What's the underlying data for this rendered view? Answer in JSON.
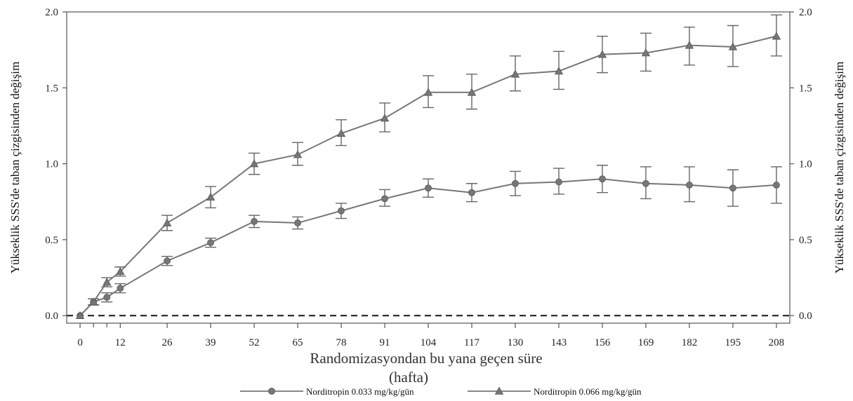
{
  "chart_data": {
    "type": "line",
    "xlabel": "Randomizasyondan bu yana geçen süre",
    "xlabel_unit": "(hafta)",
    "ylabel_left": "Yükseklik SSS'de taban çizgisinden değişim",
    "ylabel_right": "Yükseklik SSS'de taban çizgisinden değişim",
    "x_ticks": [
      0,
      12,
      26,
      39,
      52,
      65,
      78,
      91,
      104,
      117,
      130,
      143,
      156,
      169,
      182,
      195,
      208
    ],
    "y_ticks": [
      "0.0",
      "0.5",
      "1.0",
      "1.5",
      "2.0"
    ],
    "xlim": [
      -4,
      212
    ],
    "ylim": [
      -0.05,
      2.0
    ],
    "reference_line_y": 0.0,
    "legend_position": "bottom",
    "series": [
      {
        "name": "Norditropin 0.033 mg/kg/gün",
        "marker": "circle",
        "color": "#777777",
        "x": [
          0,
          4,
          8,
          12,
          26,
          39,
          52,
          65,
          78,
          91,
          104,
          117,
          130,
          143,
          156,
          169,
          182,
          195,
          208
        ],
        "y": [
          0.0,
          0.09,
          0.12,
          0.18,
          0.36,
          0.48,
          0.62,
          0.61,
          0.69,
          0.77,
          0.84,
          0.81,
          0.87,
          0.88,
          0.9,
          0.87,
          0.86,
          0.84,
          0.86
        ],
        "lower": [
          0.0,
          0.07,
          0.09,
          0.15,
          0.33,
          0.45,
          0.58,
          0.57,
          0.64,
          0.72,
          0.78,
          0.75,
          0.79,
          0.8,
          0.81,
          0.77,
          0.75,
          0.72,
          0.74
        ],
        "upper": [
          0.0,
          0.11,
          0.15,
          0.21,
          0.39,
          0.51,
          0.66,
          0.65,
          0.74,
          0.83,
          0.9,
          0.87,
          0.95,
          0.97,
          0.99,
          0.98,
          0.98,
          0.96,
          0.98
        ]
      },
      {
        "name": "Norditropin 0.066 mg/kg/gün",
        "marker": "triangle",
        "color": "#777777",
        "x": [
          0,
          4,
          8,
          12,
          26,
          39,
          52,
          65,
          78,
          91,
          104,
          117,
          130,
          143,
          156,
          169,
          182,
          195,
          208
        ],
        "y": [
          0.0,
          0.09,
          0.22,
          0.29,
          0.61,
          0.78,
          1.0,
          1.06,
          1.2,
          1.3,
          1.47,
          1.47,
          1.59,
          1.61,
          1.72,
          1.73,
          1.78,
          1.77,
          1.84
        ],
        "lower": [
          0.0,
          0.07,
          0.19,
          0.26,
          0.56,
          0.71,
          0.93,
          0.99,
          1.12,
          1.21,
          1.37,
          1.36,
          1.48,
          1.49,
          1.6,
          1.61,
          1.65,
          1.64,
          1.71
        ],
        "upper": [
          0.0,
          0.11,
          0.25,
          0.32,
          0.66,
          0.85,
          1.07,
          1.14,
          1.29,
          1.4,
          1.58,
          1.59,
          1.71,
          1.74,
          1.84,
          1.86,
          1.9,
          1.91,
          1.98
        ]
      }
    ]
  }
}
